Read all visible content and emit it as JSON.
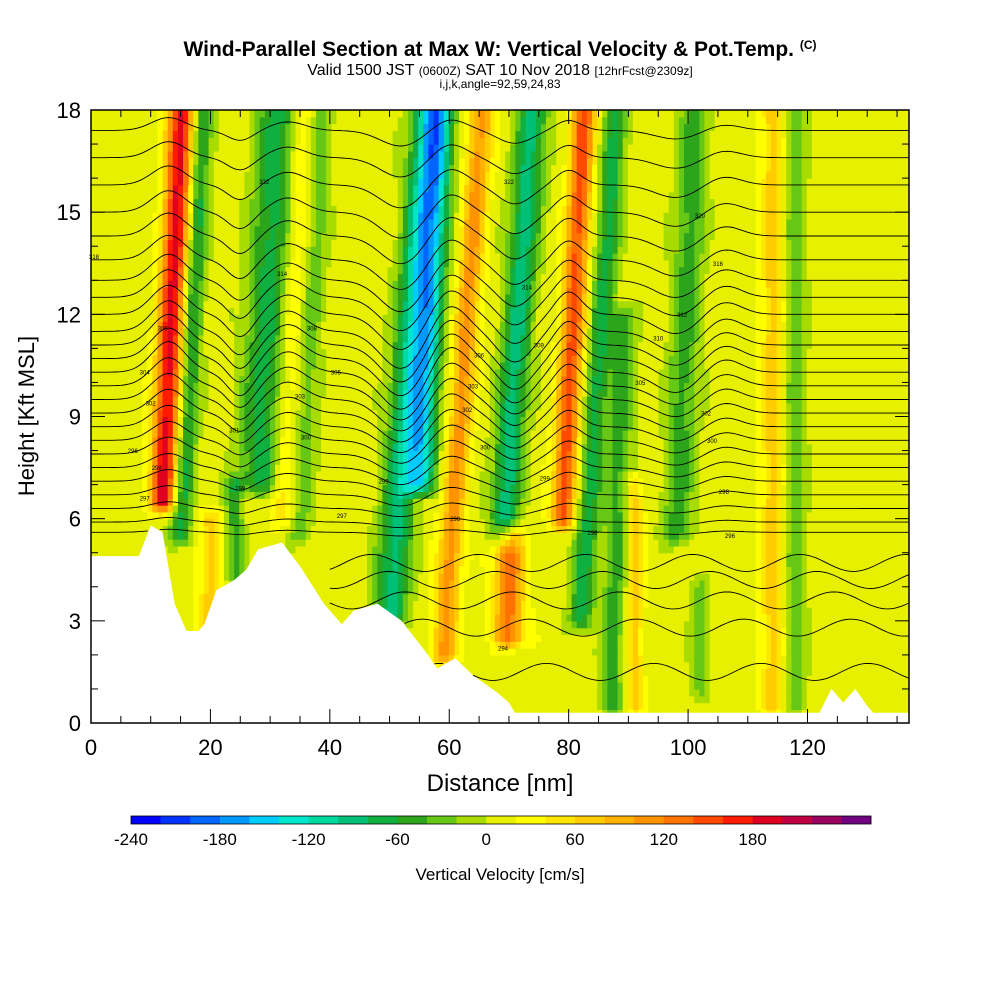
{
  "header": {
    "title": "Wind-Parallel Section at Max W: Vertical Velocity & Pot.Temp.",
    "title_mark": "(C)",
    "valid_prefix": "Valid 1500 JST",
    "valid_small": "(0600Z)",
    "valid_main": "SAT 10 Nov 2018",
    "valid_fcst": "[12hrFcst@2309z]",
    "indices": "i,j,k,angle=92,59,24,83"
  },
  "chart_data": {
    "type": "heatmap",
    "title": "Wind-Parallel Section at Max W: Vertical Velocity & Pot.Temp.",
    "xlabel": "Distance [nm]",
    "ylabel": "Height [Kft MSL]",
    "xlim": [
      0,
      137
    ],
    "ylim": [
      0,
      18
    ],
    "x_ticks": [
      "0",
      "20",
      "40",
      "60",
      "80",
      "100",
      "120"
    ],
    "y_ticks": [
      "0",
      "3",
      "6",
      "9",
      "12",
      "15",
      "18"
    ],
    "colorbar": {
      "label": "Vertical Velocity [cm/s]",
      "ticks": [
        "-240",
        "-180",
        "-120",
        "-60",
        "0",
        "60",
        "120",
        "180"
      ],
      "min": -240,
      "step": 20,
      "colors": [
        "#0000ff",
        "#0033ff",
        "#0066ff",
        "#0099ff",
        "#00ccff",
        "#00e6cc",
        "#00d9a0",
        "#00c078",
        "#10b040",
        "#2ca51c",
        "#66c814",
        "#a8dc00",
        "#e6f000",
        "#ffff00",
        "#ffe600",
        "#ffcc00",
        "#ffb000",
        "#ff9400",
        "#ff7200",
        "#ff4800",
        "#ff1a00",
        "#e00020",
        "#c00040",
        "#9a0060",
        "#700080"
      ]
    },
    "terrain_height_kft": [
      [
        0,
        4.9
      ],
      [
        8,
        4.9
      ],
      [
        10,
        5.8
      ],
      [
        12,
        5.6
      ],
      [
        14,
        3.5
      ],
      [
        16,
        2.7
      ],
      [
        18,
        2.7
      ],
      [
        19,
        2.9
      ],
      [
        21,
        3.9
      ],
      [
        24,
        4.2
      ],
      [
        26,
        4.5
      ],
      [
        28,
        5.1
      ],
      [
        32,
        5.3
      ],
      [
        35,
        4.6
      ],
      [
        39,
        3.5
      ],
      [
        42,
        2.9
      ],
      [
        44,
        3.3
      ],
      [
        48,
        3.5
      ],
      [
        52,
        3.0
      ],
      [
        56,
        2.1
      ],
      [
        58,
        1.6
      ],
      [
        61,
        1.9
      ],
      [
        64,
        1.4
      ],
      [
        68,
        0.9
      ],
      [
        70,
        0.6
      ],
      [
        71,
        0.3
      ],
      [
        122,
        0.3
      ],
      [
        124,
        1.0
      ],
      [
        126,
        0.6
      ],
      [
        128,
        1.0
      ],
      [
        130,
        0.5
      ],
      [
        131,
        0.3
      ],
      [
        137,
        0.3
      ]
    ],
    "vertical_velocity_features": [
      {
        "x": 12,
        "z_bottom": 6.5,
        "z_top": 18,
        "tilt": 0.28,
        "width_nm": 2.2,
        "peak_cm_s": 180
      },
      {
        "x": 15,
        "z_bottom": 5.5,
        "z_top": 18,
        "tilt": 0.3,
        "width_nm": 1.8,
        "peak_cm_s": -80
      },
      {
        "x": 20,
        "z_bottom": 2.8,
        "z_top": 6.0,
        "tilt": 0.0,
        "width_nm": 2.0,
        "peak_cm_s": 60
      },
      {
        "x": 24,
        "z_bottom": 4.3,
        "z_top": 7.0,
        "tilt": 0.0,
        "width_nm": 1.5,
        "peak_cm_s": -60
      },
      {
        "x": 28,
        "z_bottom": 7.0,
        "z_top": 18,
        "tilt": 0.3,
        "width_nm": 3.5,
        "peak_cm_s": -80
      },
      {
        "x": 32,
        "z_bottom": 6.0,
        "z_top": 18,
        "tilt": 0.3,
        "width_nm": 2.0,
        "peak_cm_s": 40
      },
      {
        "x": 35,
        "z_bottom": 5.5,
        "z_top": 18,
        "tilt": 0.3,
        "width_nm": 2.0,
        "peak_cm_s": -40
      },
      {
        "x": 50,
        "z_bottom": 3.0,
        "z_top": 18,
        "tilt": 0.42,
        "width_nm": 2.8,
        "peak_cm_s": -100
      },
      {
        "x": 55,
        "z_bottom": 7.0,
        "z_top": 18,
        "tilt": 0.3,
        "width_nm": 2.5,
        "peak_cm_s": -140
      },
      {
        "x": 59,
        "z_bottom": 2.0,
        "z_top": 18,
        "tilt": 0.4,
        "width_nm": 2.0,
        "peak_cm_s": 100
      },
      {
        "x": 70,
        "z_bottom": 2.5,
        "z_top": 5.5,
        "tilt": 0.0,
        "width_nm": 2.5,
        "peak_cm_s": 120
      },
      {
        "x": 69,
        "z_bottom": 5.5,
        "z_top": 18,
        "tilt": 0.4,
        "width_nm": 2.5,
        "peak_cm_s": -100
      },
      {
        "x": 82,
        "z_bottom": 3.0,
        "z_top": 18,
        "tilt": 0.4,
        "width_nm": 2.0,
        "peak_cm_s": -80
      },
      {
        "x": 79,
        "z_bottom": 6.0,
        "z_top": 18,
        "tilt": 0.3,
        "width_nm": 2.0,
        "peak_cm_s": 140
      },
      {
        "x": 87,
        "z_bottom": 0.5,
        "z_top": 12,
        "tilt": 0.2,
        "width_nm": 2.0,
        "peak_cm_s": -60
      },
      {
        "x": 91,
        "z_bottom": 0.5,
        "z_top": 7.0,
        "tilt": 0.0,
        "width_nm": 1.5,
        "peak_cm_s": 60
      },
      {
        "x": 98,
        "z_bottom": 5.5,
        "z_top": 18,
        "tilt": 0.25,
        "width_nm": 2.5,
        "peak_cm_s": -60
      },
      {
        "x": 102,
        "z_bottom": 1.0,
        "z_top": 4.0,
        "tilt": 0.0,
        "width_nm": 1.5,
        "peak_cm_s": -40
      },
      {
        "x": 114,
        "z_bottom": 0.5,
        "z_top": 18,
        "tilt": 0.0,
        "width_nm": 1.8,
        "peak_cm_s": 60
      },
      {
        "x": 118,
        "z_bottom": 0.5,
        "z_top": 18,
        "tilt": 0.0,
        "width_nm": 1.8,
        "peak_cm_s": -40
      }
    ],
    "potential_temperature_contours_kft": [
      {
        "base_z": 5.6,
        "disp_scale": 0.1
      },
      {
        "base_z": 5.9,
        "disp_scale": 0.15
      },
      {
        "base_z": 6.3,
        "disp_scale": 0.22
      },
      {
        "base_z": 6.7,
        "disp_scale": 0.3
      },
      {
        "base_z": 7.1,
        "disp_scale": 0.38
      },
      {
        "base_z": 7.5,
        "disp_scale": 0.46
      },
      {
        "base_z": 7.9,
        "disp_scale": 0.55
      },
      {
        "base_z": 8.3,
        "disp_scale": 0.62
      },
      {
        "base_z": 8.7,
        "disp_scale": 0.7
      },
      {
        "base_z": 9.1,
        "disp_scale": 0.78
      },
      {
        "base_z": 9.5,
        "disp_scale": 0.85
      },
      {
        "base_z": 9.9,
        "disp_scale": 0.92
      },
      {
        "base_z": 10.3,
        "disp_scale": 1.0
      },
      {
        "base_z": 10.7,
        "disp_scale": 1.0
      },
      {
        "base_z": 11.1,
        "disp_scale": 1.0
      },
      {
        "base_z": 11.5,
        "disp_scale": 1.0
      },
      {
        "base_z": 12.0,
        "disp_scale": 0.95
      },
      {
        "base_z": 12.5,
        "disp_scale": 0.9
      },
      {
        "base_z": 13.0,
        "disp_scale": 0.85
      },
      {
        "base_z": 13.6,
        "disp_scale": 0.8
      },
      {
        "base_z": 14.3,
        "disp_scale": 0.75
      },
      {
        "base_z": 15.0,
        "disp_scale": 0.7
      },
      {
        "base_z": 15.8,
        "disp_scale": 0.62
      },
      {
        "base_z": 16.6,
        "disp_scale": 0.52
      },
      {
        "base_z": 17.4,
        "disp_scale": 0.42
      }
    ],
    "low_level_contours_kft": [
      1.5,
      2.8,
      3.6,
      4.2,
      4.7
    ],
    "contour_labels": [
      {
        "x": 7,
        "z": 8.0,
        "text": "296"
      },
      {
        "x": 9,
        "z": 6.6,
        "text": "297"
      },
      {
        "x": 11,
        "z": 7.5,
        "text": "298"
      },
      {
        "x": 10,
        "z": 9.4,
        "text": "302"
      },
      {
        "x": 9,
        "z": 10.3,
        "text": "304"
      },
      {
        "x": 12,
        "z": 11.6,
        "text": "306"
      },
      {
        "x": 0.5,
        "z": 13.7,
        "text": "318"
      },
      {
        "x": 24,
        "z": 8.6,
        "text": "301"
      },
      {
        "x": 25,
        "z": 6.9,
        "text": "299"
      },
      {
        "x": 29,
        "z": 15.9,
        "text": "322"
      },
      {
        "x": 32,
        "z": 13.2,
        "text": "314"
      },
      {
        "x": 35,
        "z": 9.6,
        "text": "303"
      },
      {
        "x": 36,
        "z": 8.4,
        "text": "300"
      },
      {
        "x": 37,
        "z": 11.6,
        "text": "308"
      },
      {
        "x": 41,
        "z": 10.3,
        "text": "305"
      },
      {
        "x": 42,
        "z": 6.1,
        "text": "297"
      },
      {
        "x": 49,
        "z": 7.1,
        "text": "299"
      },
      {
        "x": 61,
        "z": 6.0,
        "text": "298"
      },
      {
        "x": 63,
        "z": 9.2,
        "text": "302"
      },
      {
        "x": 64,
        "z": 9.9,
        "text": "303"
      },
      {
        "x": 65,
        "z": 10.8,
        "text": "306"
      },
      {
        "x": 66,
        "z": 8.1,
        "text": "300"
      },
      {
        "x": 69,
        "z": 2.2,
        "text": "294"
      },
      {
        "x": 70,
        "z": 15.9,
        "text": "322"
      },
      {
        "x": 73,
        "z": 12.8,
        "text": "314"
      },
      {
        "x": 75,
        "z": 11.1,
        "text": "309"
      },
      {
        "x": 76,
        "z": 7.2,
        "text": "299"
      },
      {
        "x": 84,
        "z": 5.6,
        "text": "296"
      },
      {
        "x": 92,
        "z": 10.0,
        "text": "305"
      },
      {
        "x": 95,
        "z": 11.3,
        "text": "310"
      },
      {
        "x": 99,
        "z": 12.0,
        "text": "312"
      },
      {
        "x": 102,
        "z": 14.9,
        "text": "320"
      },
      {
        "x": 103,
        "z": 9.1,
        "text": "302"
      },
      {
        "x": 104,
        "z": 8.3,
        "text": "300"
      },
      {
        "x": 105,
        "z": 13.5,
        "text": "316"
      },
      {
        "x": 106,
        "z": 6.8,
        "text": "298"
      },
      {
        "x": 107,
        "z": 5.5,
        "text": "296"
      }
    ]
  }
}
